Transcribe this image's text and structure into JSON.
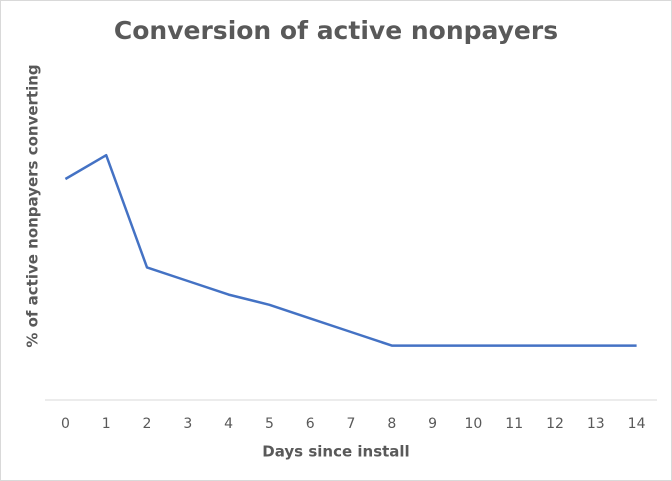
{
  "chart_data": {
    "type": "line",
    "title": "Conversion of active nonpayers",
    "x_label": "Days since install",
    "y_label": "% of active nonpayers converting",
    "categories": [
      "0",
      "1",
      "2",
      "3",
      "4",
      "5",
      "6",
      "7",
      "8",
      "9",
      "10",
      "11",
      "12",
      "13",
      "14"
    ],
    "series": [
      {
        "color": "#4472c4",
        "values": [
          6.5,
          7.2,
          3.9,
          3.5,
          3.1,
          2.8,
          2.4,
          2.0,
          1.6,
          1.6,
          1.6,
          1.6,
          1.6,
          1.6,
          1.6
        ]
      }
    ],
    "ylim": [
      0,
      10
    ]
  }
}
